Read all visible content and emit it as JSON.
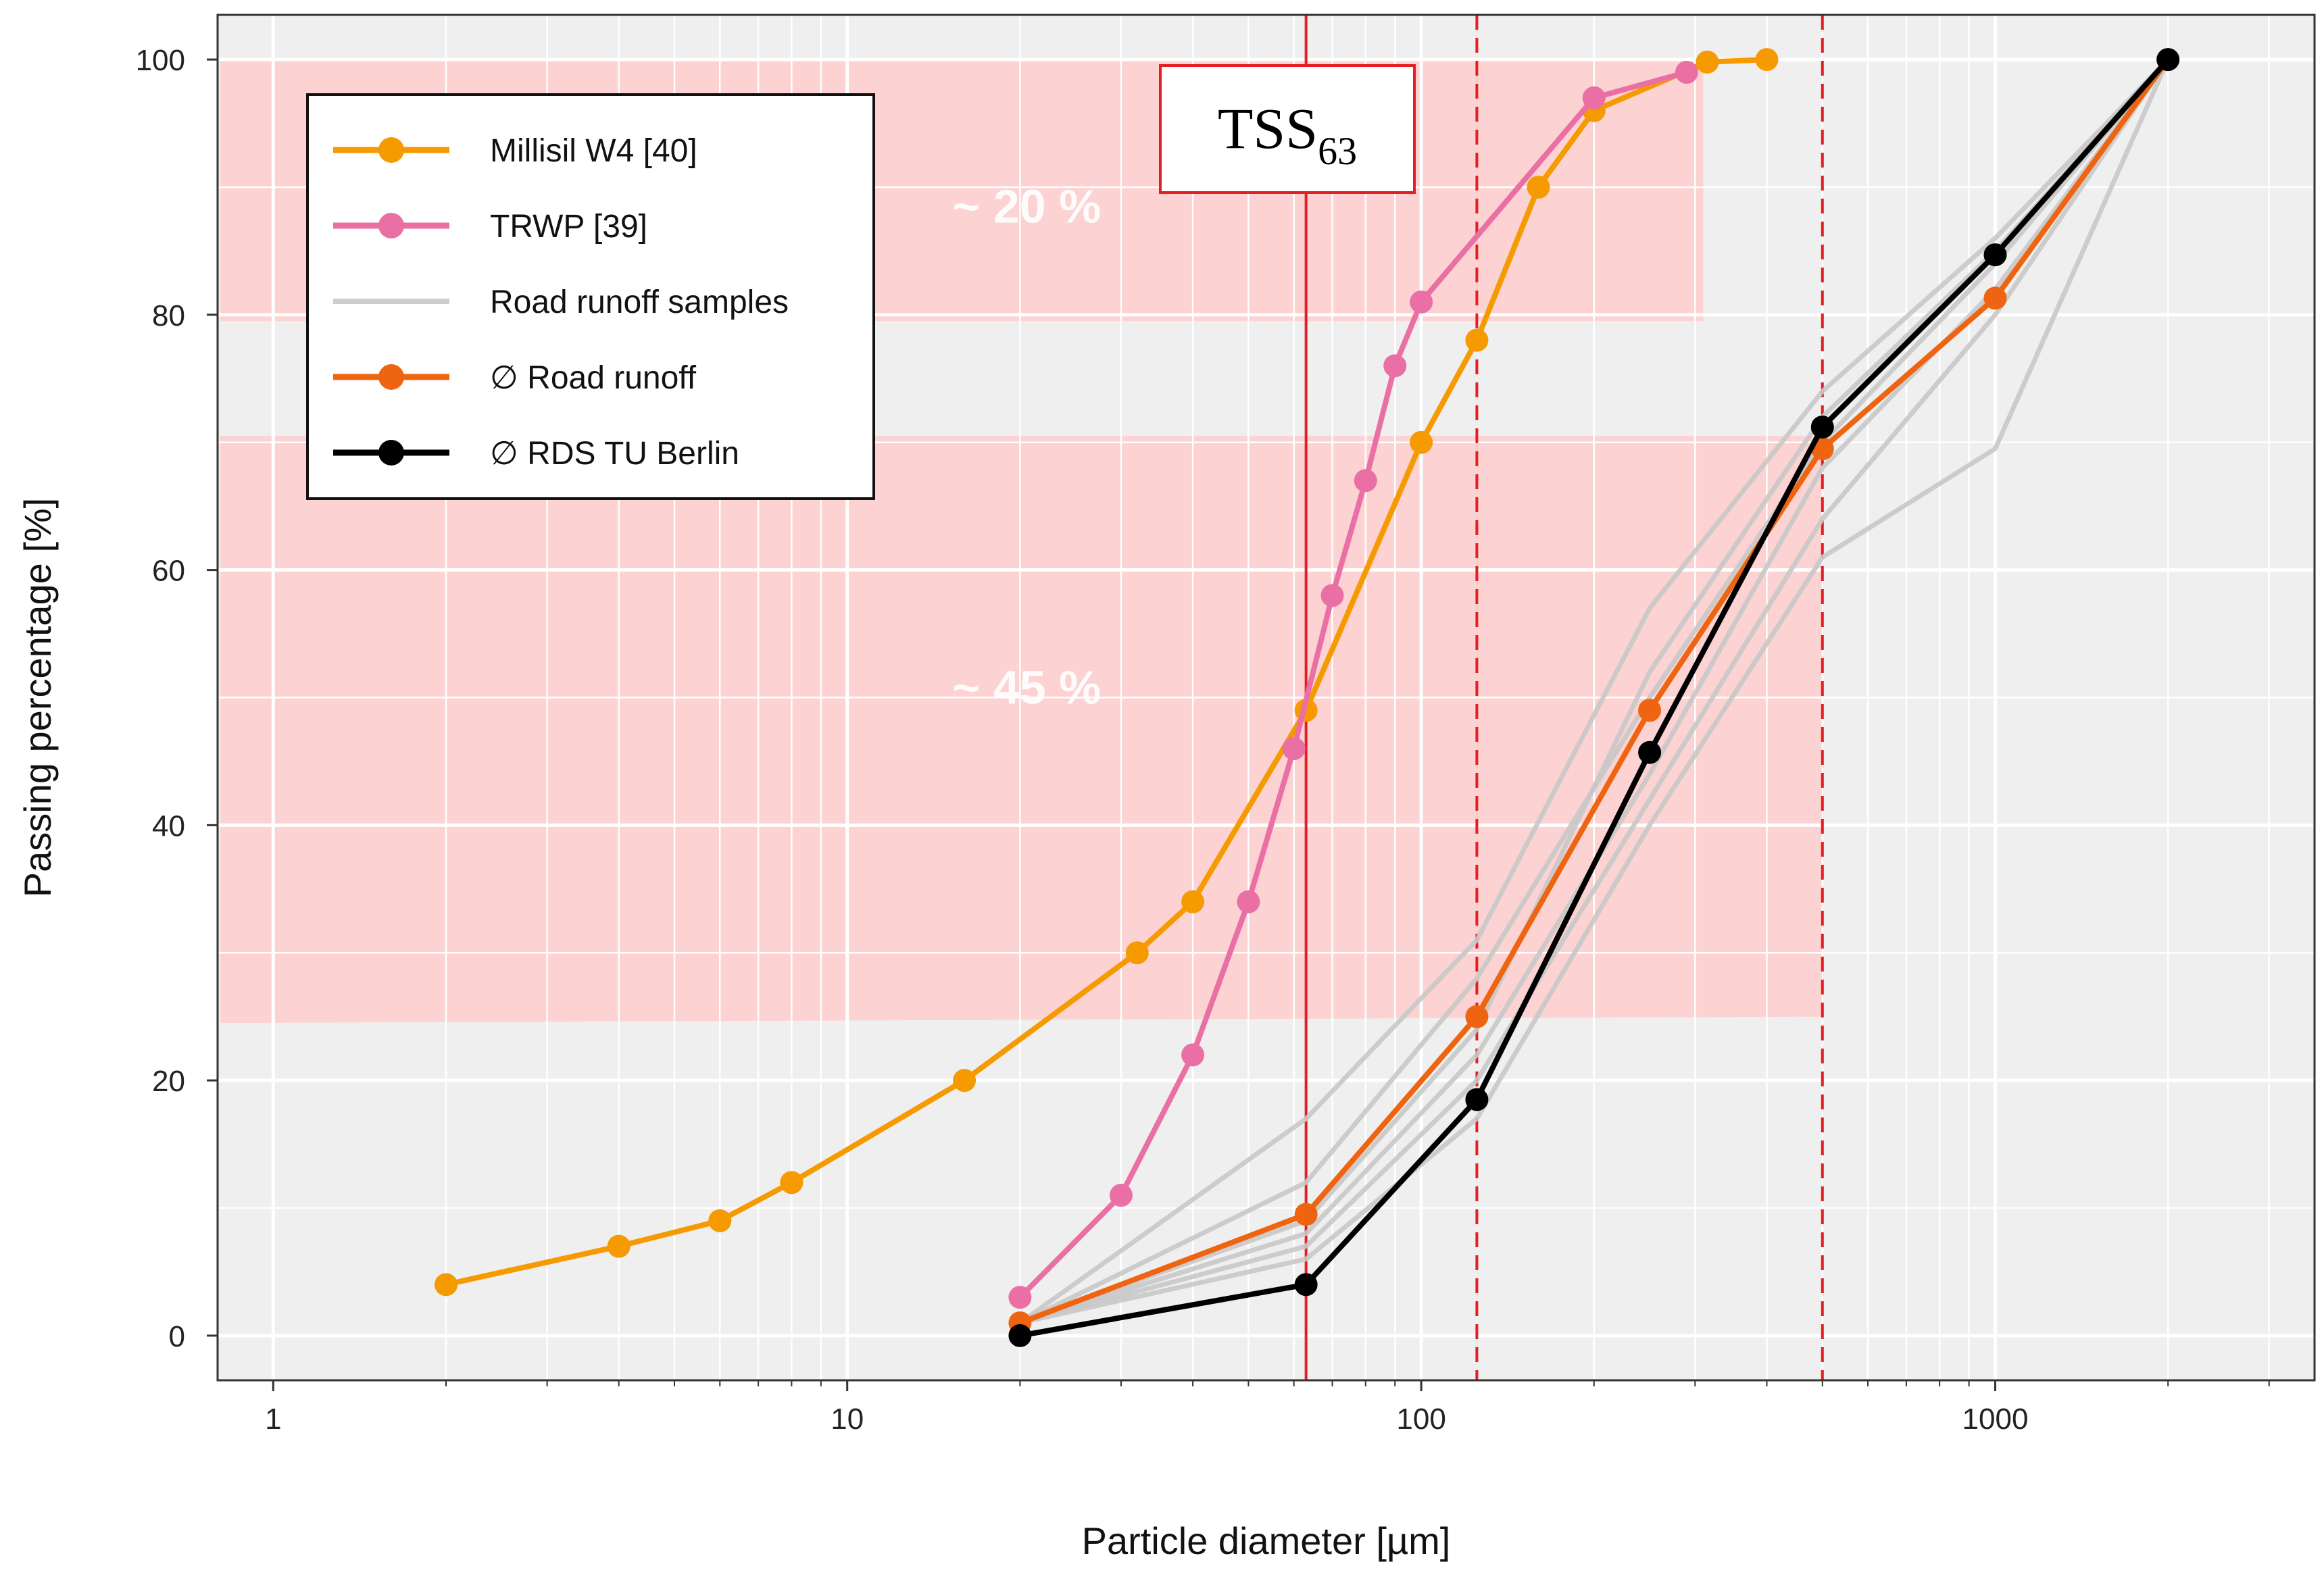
{
  "chart_data": {
    "type": "line",
    "x_scale": "log",
    "xlabel": "Particle diameter [µm]",
    "ylabel": "Passing percentage [%]",
    "xlim": [
      0.8,
      3600
    ],
    "ylim": [
      -3.5,
      103.5
    ],
    "x_ticks": [
      1,
      10,
      100,
      1000
    ],
    "x_tick_labels": [
      "1",
      "10",
      "100",
      "1000"
    ],
    "y_ticks": [
      0,
      20,
      40,
      60,
      80,
      100
    ],
    "y_tick_labels": [
      "0",
      "20",
      "40",
      "60",
      "80",
      "100"
    ],
    "grid": true,
    "legend_position": "top-left",
    "series": [
      {
        "name": "Millisil W4 [40]",
        "color": "#F59A00",
        "marker": true,
        "x": [
          2,
          4,
          6,
          8,
          16,
          32,
          40,
          63,
          100,
          125,
          160,
          200,
          315,
          400
        ],
        "y": [
          4,
          7,
          9,
          12,
          20,
          30,
          34,
          49,
          70,
          78,
          90,
          96,
          99.8,
          100
        ]
      },
      {
        "name": "TRWP [39]",
        "color": "#EA6FA5",
        "marker": true,
        "x": [
          20,
          30,
          40,
          50,
          60,
          70,
          80,
          90,
          100,
          200,
          290
        ],
        "y": [
          3,
          11,
          22,
          34,
          46,
          58,
          67,
          76,
          81,
          97,
          99
        ]
      },
      {
        "name": "Road runoff samples",
        "color": "#C8C8C8",
        "marker": false,
        "lines": [
          {
            "x": [
              20,
              63,
              125,
              250,
              500,
              1000,
              2000
            ],
            "y": [
              1,
              17,
              31,
              57,
              74,
              86,
              100
            ]
          },
          {
            "x": [
              20,
              63,
              125,
              250,
              500,
              1000,
              2000
            ],
            "y": [
              1,
              12,
              28,
              50,
              70,
              84,
              100
            ]
          },
          {
            "x": [
              20,
              63,
              125,
              250,
              500,
              1000,
              2000
            ],
            "y": [
              1,
              8,
              22,
              44,
              68,
              82,
              100
            ]
          },
          {
            "x": [
              20,
              63,
              125,
              250,
              500,
              1000,
              2000
            ],
            "y": [
              1,
              7,
              20,
              42,
              64,
              80,
              100
            ]
          },
          {
            "x": [
              20,
              63,
              125,
              250,
              500,
              1000,
              2000
            ],
            "y": [
              1,
              6,
              17,
              40,
              61,
              69.5,
              100
            ]
          },
          {
            "x": [
              20,
              63,
              125,
              250,
              500,
              1000,
              2000
            ],
            "y": [
              1,
              9,
              24,
              52,
              72,
              85,
              100
            ]
          }
        ]
      },
      {
        "name": "∅ Road runoff",
        "color": "#EE6410",
        "marker": true,
        "x": [
          20,
          63,
          125,
          250,
          500,
          1000,
          2000
        ],
        "y": [
          1,
          9.5,
          25,
          49,
          69.5,
          81.3,
          100
        ]
      },
      {
        "name": "∅ RDS TU Berlin",
        "color": "#000000",
        "marker": true,
        "x": [
          20,
          63,
          125,
          250,
          500,
          1000,
          2000
        ],
        "y": [
          0,
          4,
          18.5,
          45.7,
          71.2,
          84.7,
          100
        ]
      }
    ],
    "bands": [
      {
        "y_left": [
          79.5,
          100
        ],
        "y_right": [
          79.5,
          100
        ],
        "x_end": 310,
        "label": "~ 20 %",
        "label_x": 20,
        "label_y": 88.5
      },
      {
        "y_left": [
          24.5,
          70.5
        ],
        "y_right": [
          25,
          70.5
        ],
        "x_end": 500,
        "label": "~ 45 %",
        "label_x": 20,
        "label_y": 50.8
      }
    ],
    "vlines": [
      {
        "x": 63,
        "style": "solid",
        "color": "#E51E24"
      },
      {
        "x": 125,
        "style": "dashed",
        "color": "#E51E24"
      },
      {
        "x": 500,
        "style": "dashed",
        "color": "#E51E24"
      }
    ],
    "annotation": {
      "text": "TSS",
      "subscript": "63",
      "color": "#E51E24"
    }
  }
}
